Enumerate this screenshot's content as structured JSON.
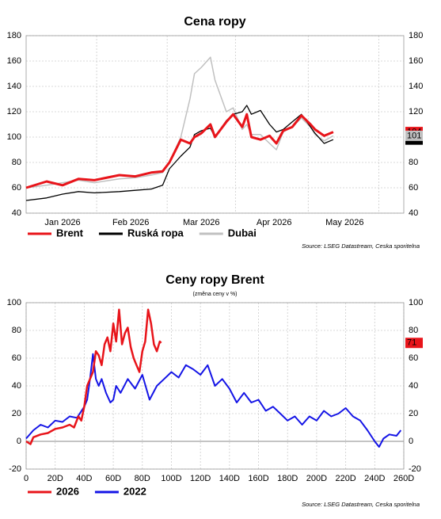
{
  "chart_data": [
    {
      "type": "line",
      "title": "Cena ropy",
      "x": [
        0,
        9,
        16,
        23,
        30,
        41,
        48,
        55,
        60,
        63,
        68,
        72,
        74,
        77,
        81,
        83,
        88,
        91,
        95,
        97,
        99,
        103,
        107,
        110,
        113,
        117,
        121,
        125,
        127,
        131,
        135
      ],
      "series": [
        {
          "name": "Brent",
          "color": "#e8141a",
          "values": [
            60,
            65,
            62,
            67,
            66,
            70,
            69,
            72,
            73,
            80,
            98,
            95,
            100,
            103,
            110,
            100,
            112,
            118,
            108,
            118,
            100,
            98,
            101,
            95,
            105,
            108,
            117,
            110,
            106,
            101,
            104
          ]
        },
        {
          "name": "Ruská ropa",
          "color": "#000000",
          "values": [
            50,
            52,
            55,
            57,
            56,
            57,
            58,
            59,
            62,
            75,
            85,
            92,
            102,
            105,
            107,
            100,
            113,
            118,
            120,
            125,
            118,
            121,
            110,
            104,
            106,
            112,
            118,
            108,
            103,
            95,
            98
          ]
        },
        {
          "name": "Dubai",
          "color": "#c0c0c0",
          "values": [
            60,
            62,
            64,
            66,
            64,
            67,
            68,
            70,
            72,
            80,
            100,
            130,
            150,
            155,
            163,
            145,
            120,
            123,
            106,
            110,
            102,
            102,
            95,
            90,
            104,
            108,
            115,
            108,
            102,
            97,
            101
          ]
        }
      ],
      "xlim": [
        0,
        166
      ],
      "xticks": [
        {
          "value": 16,
          "label": "Jan 2026"
        },
        {
          "value": 46,
          "label": "Feb 2026"
        },
        {
          "value": 77,
          "label": "Mar 2026"
        },
        {
          "value": 109,
          "label": "Apr 2026"
        },
        {
          "value": 140,
          "label": "May 2026"
        }
      ],
      "xgrid": [
        31,
        62,
        92,
        124,
        155
      ],
      "ylim": [
        40,
        180
      ],
      "yticks": [
        40,
        60,
        80,
        100,
        120,
        140,
        160,
        180
      ],
      "grid": true,
      "legend": "bottom-left",
      "source": "Source: LSEG Datastream, Ceska sporitelna"
    },
    {
      "type": "line",
      "title": "Ceny ropy Brent",
      "subtitle": "(změna ceny v %)",
      "series": [
        {
          "name": "2026",
          "color": "#e8141a",
          "x": [
            0,
            3,
            5,
            10,
            15,
            20,
            25,
            30,
            33,
            36,
            38,
            40,
            42,
            44,
            46,
            48,
            50,
            52,
            54,
            56,
            58,
            60,
            62,
            64,
            66,
            68,
            70,
            72,
            74,
            76,
            78,
            80,
            82,
            84,
            86,
            88,
            90,
            92,
            93
          ],
          "values": [
            0,
            -2,
            3,
            5,
            6,
            9,
            10,
            12,
            10,
            18,
            15,
            25,
            40,
            45,
            50,
            65,
            62,
            55,
            70,
            75,
            65,
            85,
            72,
            95,
            70,
            78,
            82,
            68,
            60,
            55,
            50,
            65,
            72,
            95,
            85,
            70,
            65,
            72,
            71
          ]
        },
        {
          "name": "2022",
          "color": "#1414e6",
          "x": [
            0,
            5,
            10,
            15,
            20,
            25,
            30,
            35,
            40,
            42,
            44,
            46,
            48,
            50,
            52,
            55,
            58,
            60,
            62,
            65,
            70,
            75,
            80,
            85,
            90,
            95,
            100,
            105,
            110,
            115,
            120,
            125,
            130,
            135,
            140,
            145,
            150,
            155,
            160,
            165,
            170,
            175,
            180,
            185,
            190,
            195,
            200,
            205,
            210,
            215,
            220,
            225,
            230,
            235,
            240,
            243,
            246,
            250,
            255,
            258
          ],
          "values": [
            2,
            8,
            12,
            10,
            15,
            14,
            18,
            17,
            25,
            30,
            45,
            63,
            45,
            40,
            45,
            35,
            28,
            30,
            40,
            35,
            45,
            38,
            48,
            30,
            40,
            45,
            50,
            46,
            55,
            52,
            48,
            55,
            40,
            45,
            38,
            28,
            35,
            28,
            30,
            22,
            25,
            20,
            15,
            18,
            12,
            18,
            15,
            22,
            18,
            20,
            24,
            18,
            15,
            8,
            0,
            -4,
            2,
            5,
            4,
            8
          ]
        }
      ],
      "xlim": [
        0,
        260
      ],
      "xticks": [
        0,
        {
          "value": 20,
          "label": "20D"
        },
        {
          "value": 40,
          "label": "40D"
        },
        {
          "value": 60,
          "label": "60D"
        },
        {
          "value": 80,
          "label": "80D"
        },
        {
          "value": 100,
          "label": "100D"
        },
        {
          "value": 120,
          "label": "120D"
        },
        {
          "value": 140,
          "label": "140D"
        },
        {
          "value": 160,
          "label": "160D"
        },
        {
          "value": 180,
          "label": "180D"
        },
        {
          "value": 200,
          "label": "200D"
        },
        {
          "value": 220,
          "label": "220D"
        },
        {
          "value": 240,
          "label": "240D"
        },
        {
          "value": 260,
          "label": "260D"
        }
      ],
      "ylim": [
        -20,
        100
      ],
      "yticks": [
        -20,
        0,
        20,
        40,
        60,
        80,
        100
      ],
      "grid": true,
      "legend": "bottom-left",
      "source": "Source: LSEG Datastream, Ceska sporitelna"
    }
  ]
}
